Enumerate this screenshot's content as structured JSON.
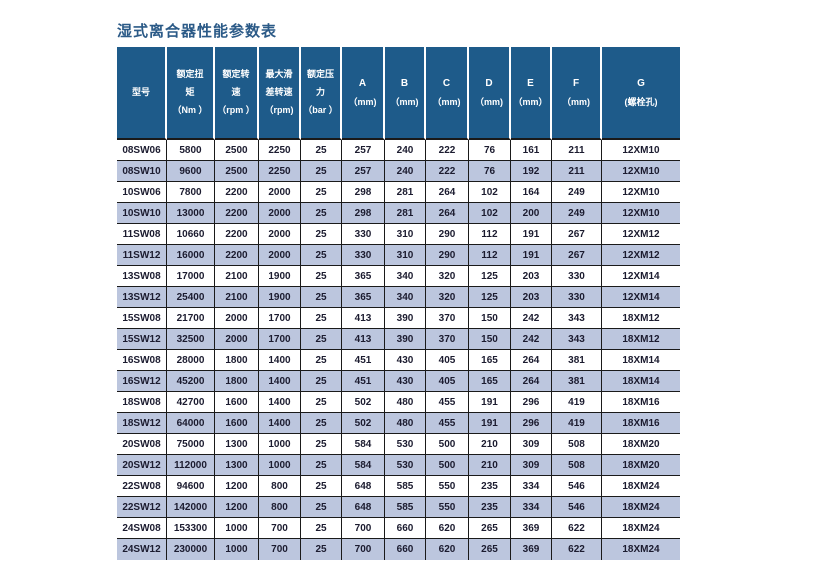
{
  "page": {
    "title": "湿式离合器性能参数表"
  },
  "colors": {
    "header_bg": "#1e5b8a",
    "row_alt_bg": "#bcc6de",
    "row_bg": "#ffffff",
    "grid_line": "#1a1a1a",
    "title_color": "#2b5a87",
    "cell_text": "#1b1b2f",
    "header_text": "#ffffff"
  },
  "table": {
    "columns": [
      {
        "id": "model",
        "header_lines": [
          "型号"
        ]
      },
      {
        "id": "rated_torque",
        "header_lines": [
          "额定扭",
          "矩",
          "（Nm ）"
        ]
      },
      {
        "id": "rated_speed",
        "header_lines": [
          "额定转",
          "速",
          "（rpm ）"
        ]
      },
      {
        "id": "max_slip_speed",
        "header_lines": [
          "最大滑",
          "差转速",
          "（rpm)"
        ]
      },
      {
        "id": "rated_pressure",
        "header_lines": [
          "额定压",
          "力",
          "（bar ）"
        ]
      },
      {
        "id": "dim_a",
        "header_lines": [
          "A",
          "（mm)"
        ]
      },
      {
        "id": "dim_b",
        "header_lines": [
          "B",
          "（mm)"
        ]
      },
      {
        "id": "dim_c",
        "header_lines": [
          "C",
          "（mm)"
        ]
      },
      {
        "id": "dim_d",
        "header_lines": [
          "D",
          "（mm)"
        ]
      },
      {
        "id": "dim_e",
        "header_lines": [
          "E",
          "（mm）"
        ]
      },
      {
        "id": "dim_f",
        "header_lines": [
          "F",
          "（mm)"
        ]
      },
      {
        "id": "dim_g",
        "header_lines": [
          "G",
          "(螺栓孔)"
        ]
      }
    ],
    "rows": [
      [
        "08SW06",
        "5800",
        "2500",
        "2250",
        "25",
        "257",
        "240",
        "222",
        "76",
        "161",
        "211",
        "12XM10"
      ],
      [
        "08SW10",
        "9600",
        "2500",
        "2250",
        "25",
        "257",
        "240",
        "222",
        "76",
        "192",
        "211",
        "12XM10"
      ],
      [
        "10SW06",
        "7800",
        "2200",
        "2000",
        "25",
        "298",
        "281",
        "264",
        "102",
        "164",
        "249",
        "12XM10"
      ],
      [
        "10SW10",
        "13000",
        "2200",
        "2000",
        "25",
        "298",
        "281",
        "264",
        "102",
        "200",
        "249",
        "12XM10"
      ],
      [
        "11SW08",
        "10660",
        "2200",
        "2000",
        "25",
        "330",
        "310",
        "290",
        "112",
        "191",
        "267",
        "12XM12"
      ],
      [
        "11SW12",
        "16000",
        "2200",
        "2000",
        "25",
        "330",
        "310",
        "290",
        "112",
        "191",
        "267",
        "12XM12"
      ],
      [
        "13SW08",
        "17000",
        "2100",
        "1900",
        "25",
        "365",
        "340",
        "320",
        "125",
        "203",
        "330",
        "12XM14"
      ],
      [
        "13SW12",
        "25400",
        "2100",
        "1900",
        "25",
        "365",
        "340",
        "320",
        "125",
        "203",
        "330",
        "12XM14"
      ],
      [
        "15SW08",
        "21700",
        "2000",
        "1700",
        "25",
        "413",
        "390",
        "370",
        "150",
        "242",
        "343",
        "18XM12"
      ],
      [
        "15SW12",
        "32500",
        "2000",
        "1700",
        "25",
        "413",
        "390",
        "370",
        "150",
        "242",
        "343",
        "18XM12"
      ],
      [
        "16SW08",
        "28000",
        "1800",
        "1400",
        "25",
        "451",
        "430",
        "405",
        "165",
        "264",
        "381",
        "18XM14"
      ],
      [
        "16SW12",
        "45200",
        "1800",
        "1400",
        "25",
        "451",
        "430",
        "405",
        "165",
        "264",
        "381",
        "18XM14"
      ],
      [
        "18SW08",
        "42700",
        "1600",
        "1400",
        "25",
        "502",
        "480",
        "455",
        "191",
        "296",
        "419",
        "18XM16"
      ],
      [
        "18SW12",
        "64000",
        "1600",
        "1400",
        "25",
        "502",
        "480",
        "455",
        "191",
        "296",
        "419",
        "18XM16"
      ],
      [
        "20SW08",
        "75000",
        "1300",
        "1000",
        "25",
        "584",
        "530",
        "500",
        "210",
        "309",
        "508",
        "18XM20"
      ],
      [
        "20SW12",
        "112000",
        "1300",
        "1000",
        "25",
        "584",
        "530",
        "500",
        "210",
        "309",
        "508",
        "18XM20"
      ],
      [
        "22SW08",
        "94600",
        "1200",
        "800",
        "25",
        "648",
        "585",
        "550",
        "235",
        "334",
        "546",
        "18XM24"
      ],
      [
        "22SW12",
        "142000",
        "1200",
        "800",
        "25",
        "648",
        "585",
        "550",
        "235",
        "334",
        "546",
        "18XM24"
      ],
      [
        "24SW08",
        "153300",
        "1000",
        "700",
        "25",
        "700",
        "660",
        "620",
        "265",
        "369",
        "622",
        "18XM24"
      ],
      [
        "24SW12",
        "230000",
        "1000",
        "700",
        "25",
        "700",
        "660",
        "620",
        "265",
        "369",
        "622",
        "18XM24"
      ]
    ]
  }
}
